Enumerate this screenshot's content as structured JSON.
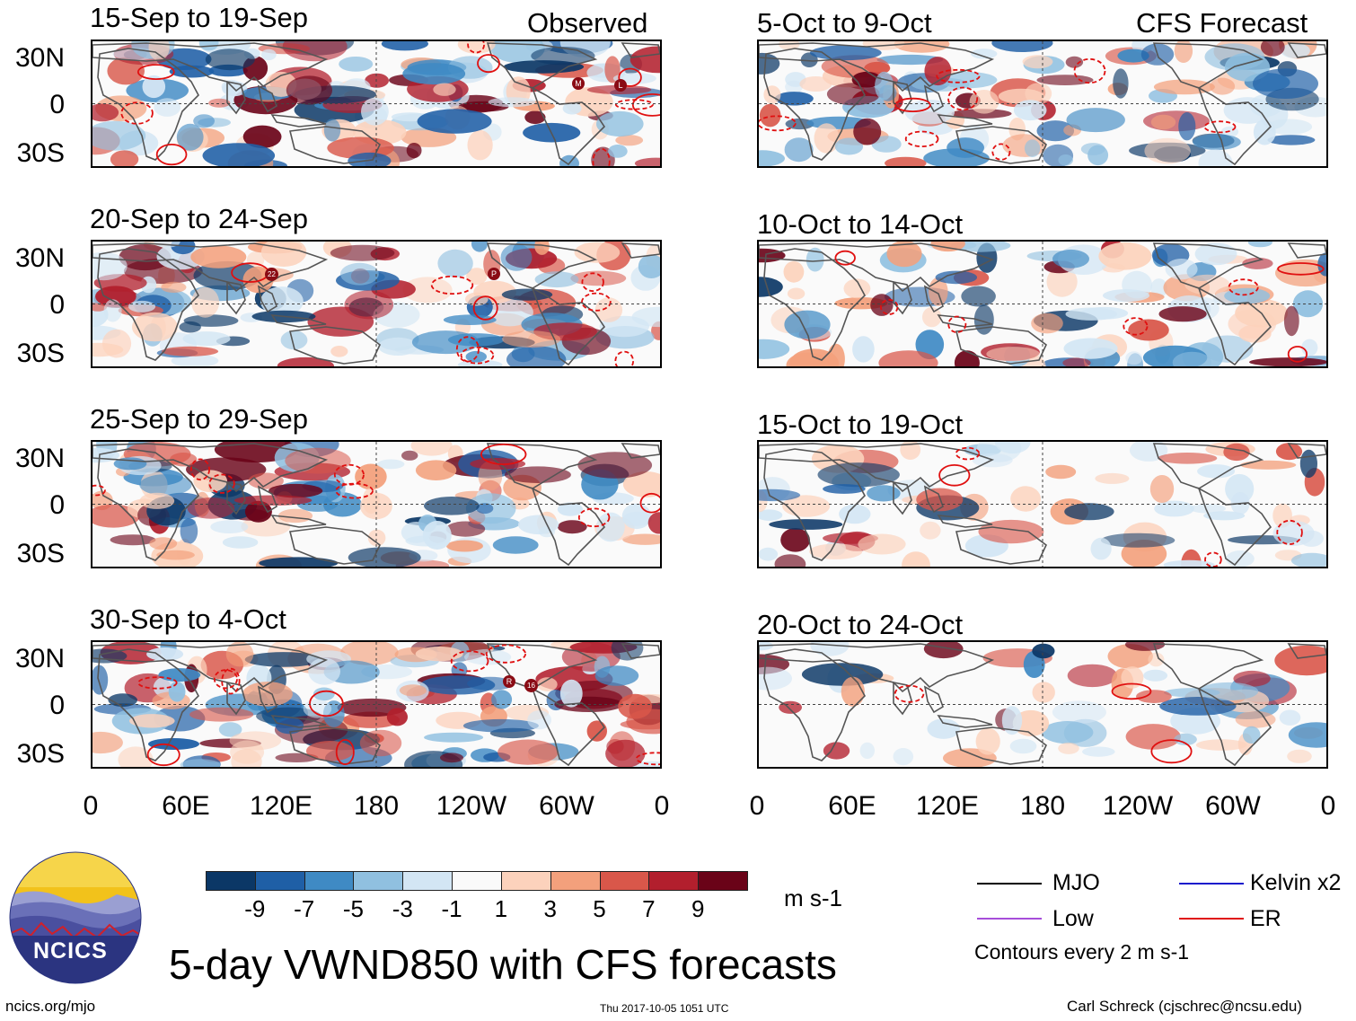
{
  "header": {
    "observed_label": "Observed",
    "forecast_label": "CFS Forecast"
  },
  "chart_data": {
    "type": "heatmap",
    "title": "5-day VWND850 with CFS forecasts",
    "variable": "850 hPa meridional wind anomaly",
    "units": "m s-1",
    "x_ticks": [
      "0",
      "60E",
      "120E",
      "180",
      "120W",
      "60W",
      "0"
    ],
    "y_ticks": [
      "30N",
      "0",
      "30S"
    ],
    "observed_panels": [
      {
        "period": "15-Sep to 19-Sep",
        "storm_markers": [
          "M",
          "L"
        ]
      },
      {
        "period": "20-Sep to 24-Sep",
        "storm_markers": [
          "22",
          "P"
        ]
      },
      {
        "period": "25-Sep to 29-Sep",
        "storm_markers": []
      },
      {
        "period": "30-Sep to 4-Oct",
        "storm_markers": [
          "R",
          "16"
        ]
      }
    ],
    "forecast_panels": [
      {
        "period": "5-Oct to 9-Oct"
      },
      {
        "period": "10-Oct to 14-Oct"
      },
      {
        "period": "15-Oct to 19-Oct"
      },
      {
        "period": "20-Oct to 24-Oct"
      }
    ],
    "colorbar": {
      "ticks": [
        "-9",
        "-7",
        "-5",
        "-3",
        "-1",
        "1",
        "3",
        "5",
        "7",
        "9"
      ],
      "colors": [
        "#0b3766",
        "#1f5fa6",
        "#3f8ac4",
        "#90c0e0",
        "#d3e6f4",
        "#fafafa",
        "#fcd2bc",
        "#f3a07c",
        "#d9574a",
        "#b21f2d",
        "#6a0318"
      ],
      "units": "m s-1"
    },
    "legend": [
      {
        "label": "MJO",
        "color": "#000000"
      },
      {
        "label": "Kelvin x2",
        "color": "#1a1acc"
      },
      {
        "label": "Low",
        "color": "#a64dd9"
      },
      {
        "label": "ER",
        "color": "#e01010"
      }
    ],
    "contour_note": "Contours every 2 m s-1"
  },
  "footer": {
    "logo_text": "NCICS",
    "url": "ncics.org/mjo",
    "timestamp": "Thu 2017-10-05 1051 UTC",
    "credit": "Carl Schreck (cjschrec@ncsu.edu)"
  }
}
